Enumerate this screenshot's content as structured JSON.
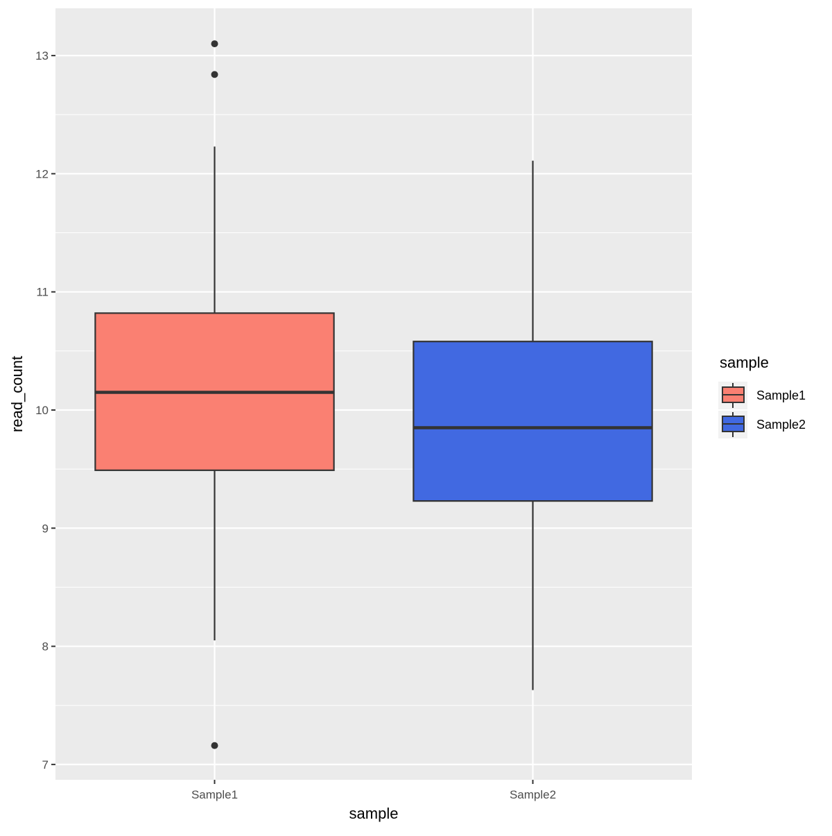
{
  "chart_data": {
    "type": "boxplot",
    "title": "",
    "xlabel": "sample",
    "ylabel": "read_count",
    "categories": [
      "Sample1",
      "Sample2"
    ],
    "ylim": [
      6.87,
      13.4
    ],
    "yticks": [
      7,
      8,
      9,
      10,
      11,
      12,
      13
    ],
    "grid": true,
    "legend": {
      "title": "sample",
      "position": "right",
      "entries": [
        "Sample1",
        "Sample2"
      ]
    },
    "colors": {
      "Sample1": "#FA8072",
      "Sample2": "#4169E1",
      "panel": "#EBEBEB",
      "grid": "#FFFFFF",
      "outline": "#333333"
    },
    "boxes": [
      {
        "name": "Sample1",
        "whisker_low": 8.05,
        "q1": 9.49,
        "median": 10.15,
        "q3": 10.82,
        "whisker_high": 12.23,
        "outliers": [
          13.1,
          12.84,
          7.16
        ]
      },
      {
        "name": "Sample2",
        "whisker_low": 7.63,
        "q1": 9.23,
        "median": 9.85,
        "q3": 10.58,
        "whisker_high": 12.11,
        "outliers": []
      }
    ]
  }
}
